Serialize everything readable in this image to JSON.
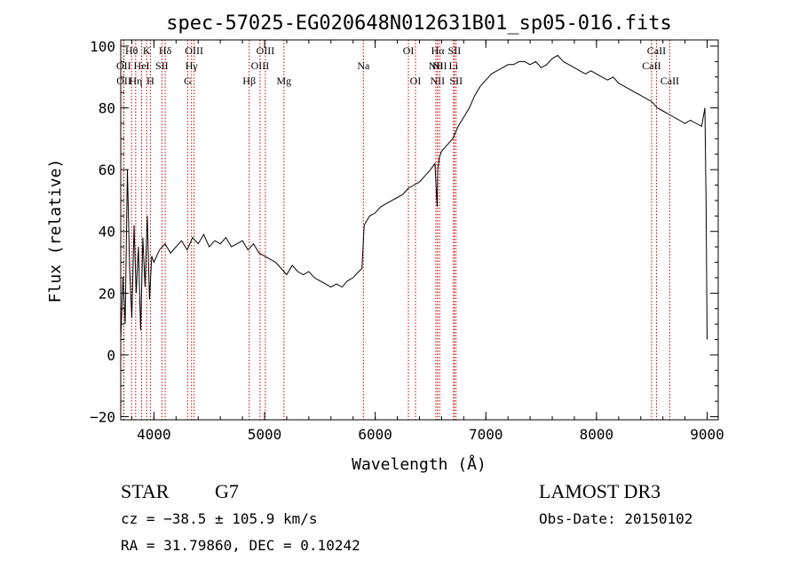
{
  "chart_data": {
    "type": "line",
    "title": "spec-57025-EG020648N012631B01_sp05-016.fits",
    "xlabel": "Wavelength (Å)",
    "ylabel": "Flux (relative)",
    "xlim": [
      3700,
      9100
    ],
    "ylim": [
      -21,
      102
    ],
    "xticks": [
      4000,
      5000,
      6000,
      7000,
      8000,
      9000
    ],
    "yticks": [
      -20,
      0,
      20,
      40,
      60,
      80,
      100
    ],
    "grid": false,
    "series": [
      {
        "name": "flux",
        "x": [
          3700,
          3720,
          3740,
          3760,
          3780,
          3800,
          3820,
          3840,
          3860,
          3880,
          3900,
          3920,
          3940,
          3960,
          3980,
          4000,
          4050,
          4100,
          4150,
          4200,
          4250,
          4300,
          4350,
          4400,
          4450,
          4500,
          4550,
          4600,
          4650,
          4700,
          4750,
          4800,
          4850,
          4900,
          4950,
          5000,
          5050,
          5100,
          5150,
          5200,
          5250,
          5300,
          5350,
          5400,
          5450,
          5500,
          5550,
          5600,
          5650,
          5700,
          5750,
          5800,
          5850,
          5880,
          5900,
          5950,
          6000,
          6050,
          6100,
          6150,
          6200,
          6250,
          6300,
          6350,
          6400,
          6450,
          6500,
          6540,
          6560,
          6565,
          6580,
          6600,
          6650,
          6700,
          6750,
          6800,
          6850,
          6900,
          6950,
          7000,
          7050,
          7100,
          7150,
          7200,
          7250,
          7300,
          7350,
          7400,
          7450,
          7500,
          7550,
          7600,
          7650,
          7700,
          7750,
          7800,
          7850,
          7900,
          7950,
          8000,
          8050,
          8100,
          8150,
          8200,
          8250,
          8300,
          8350,
          8400,
          8450,
          8500,
          8550,
          8600,
          8650,
          8700,
          8750,
          8800,
          8850,
          8900,
          8950,
          8980,
          8990,
          9000
        ],
        "values": [
          5,
          25,
          10,
          60,
          28,
          12,
          42,
          20,
          35,
          8,
          38,
          22,
          45,
          18,
          32,
          30,
          34,
          36,
          33,
          35,
          37,
          34,
          38,
          36,
          39,
          35,
          37,
          36,
          38,
          35,
          36,
          37,
          34,
          36,
          33,
          32,
          31,
          30,
          28,
          26,
          29,
          27,
          26,
          27,
          25,
          24,
          23,
          22,
          23,
          22,
          24,
          25,
          27,
          28,
          42,
          45,
          46,
          48,
          49,
          50,
          51,
          52,
          54,
          55,
          56,
          58,
          60,
          62,
          48,
          60,
          64,
          66,
          68,
          70,
          74,
          77,
          80,
          84,
          87,
          89,
          91,
          92,
          93,
          94,
          94,
          95,
          95,
          94,
          95,
          93,
          94,
          96,
          97,
          95,
          94,
          93,
          92,
          91,
          92,
          91,
          90,
          89,
          90,
          88,
          87,
          86,
          85,
          84,
          83,
          82,
          80,
          79,
          78,
          77,
          76,
          75,
          76,
          75,
          74,
          80,
          50,
          5
        ]
      }
    ],
    "lines": [
      {
        "label": "OII",
        "wave": 3727,
        "row": 1
      },
      {
        "label": "OII",
        "wave": 3729,
        "row": 2
      },
      {
        "label": "Hθ",
        "wave": 3798,
        "row": 0
      },
      {
        "label": "Hη",
        "wave": 3835,
        "row": 2
      },
      {
        "label": "HeI",
        "wave": 3889,
        "row": 1
      },
      {
        "label": "K",
        "wave": 3934,
        "row": 0
      },
      {
        "label": "H",
        "wave": 3968,
        "row": 2
      },
      {
        "label": "SII",
        "wave": 4072,
        "row": 1
      },
      {
        "label": "Hδ",
        "wave": 4102,
        "row": 0
      },
      {
        "label": "G",
        "wave": 4305,
        "row": 2
      },
      {
        "label": "Hγ",
        "wave": 4340,
        "row": 1
      },
      {
        "label": "OIII",
        "wave": 4363,
        "row": 0
      },
      {
        "label": "Hβ",
        "wave": 4861,
        "row": 2
      },
      {
        "label": "OIII",
        "wave": 4959,
        "row": 1
      },
      {
        "label": "OIII",
        "wave": 5007,
        "row": 0
      },
      {
        "label": "Mg",
        "wave": 5175,
        "row": 2
      },
      {
        "label": "Na",
        "wave": 5893,
        "row": 1
      },
      {
        "label": "OI",
        "wave": 6300,
        "row": 0
      },
      {
        "label": "OI",
        "wave": 6364,
        "row": 2
      },
      {
        "label": "NII",
        "wave": 6548,
        "row": 1
      },
      {
        "label": "NII",
        "wave": 6563,
        "row": 2
      },
      {
        "label": "Hα",
        "wave": 6565,
        "row": 0
      },
      {
        "label": "NII",
        "wave": 6583,
        "row": 1
      },
      {
        "label": "Li",
        "wave": 6708,
        "row": 1
      },
      {
        "label": "SII",
        "wave": 6716,
        "row": 0
      },
      {
        "label": "SII",
        "wave": 6731,
        "row": 2
      },
      {
        "label": "CaII",
        "wave": 8498,
        "row": 1
      },
      {
        "label": "CaII",
        "wave": 8542,
        "row": 0
      },
      {
        "label": "CaII",
        "wave": 8662,
        "row": 2
      }
    ]
  },
  "info": {
    "object_type": "STAR",
    "subclass": "G7",
    "survey": "LAMOST DR3",
    "cz": "cz = −38.5 ± 105.9 km/s",
    "obs_date": "Obs-Date: 20150102",
    "coords": "RA =  31.79860, DEC =   0.10242"
  },
  "colors": {
    "axis": "#000000",
    "spectrum": "#000000",
    "line_marker": "#cc0000"
  }
}
